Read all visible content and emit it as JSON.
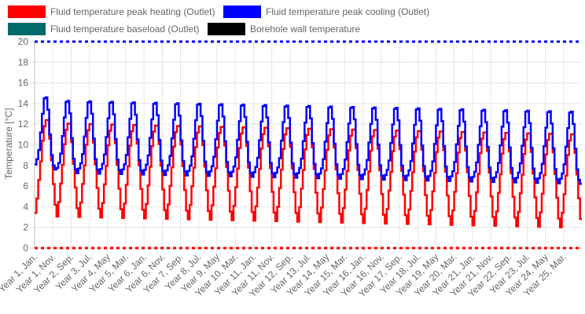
{
  "chart_data": {
    "type": "line",
    "ylabel": "Temperature [°C]",
    "ylim": [
      0,
      20
    ],
    "y_ticks": [
      0,
      2,
      4,
      6,
      8,
      10,
      12,
      14,
      16,
      18,
      20
    ],
    "grid": true,
    "legend_position": "top",
    "x_tick_labels": [
      "Year 1, Jan.",
      "Year 1, Nov.",
      "Year 2, Sep.",
      "Year 3, Jul.",
      "Year 4, May",
      "Year 5, Mar.",
      "Year 6, Jan.",
      "Year 6, Nov.",
      "Year 7, Sep.",
      "Year 8, Jul.",
      "Year 9, May",
      "Year 10, Mar.",
      "Year 11, Jan.",
      "Year 11, Nov.",
      "Year 12, Sep.",
      "Year 13, Jul.",
      "Year 14, May",
      "Year 15, Mar.",
      "Year 16, Jan.",
      "Year 16, Nov.",
      "Year 17, Sep.",
      "Year 18, Jul.",
      "Year 19, May",
      "Year 20, Mar.",
      "Year 21, Jan.",
      "Year 21, Nov.",
      "Year 22, Sep.",
      "Year 23, Jul.",
      "Year 24, May",
      "Year 25, Mar."
    ],
    "months": 300,
    "series": [
      {
        "name": "Fluid temperature peak heating (Outlet)",
        "color": "#ff0000",
        "monthly_profile": [
          3.4,
          4.8,
          6.6,
          8.4,
          10.4,
          11.8,
          12.4,
          12.4,
          10.6,
          8.5,
          6.2,
          4.2
        ],
        "first_year_profile": [
          3.4,
          4.8,
          6.6,
          8.4,
          10.4,
          11.8,
          12.4,
          12.4,
          10.6,
          8.5,
          6.2,
          4.2
        ],
        "annual_drift": -0.045
      },
      {
        "name": "Fluid temperature peak cooling (Outlet)",
        "color": "#0000ff",
        "monthly_profile": [
          8.1,
          8.6,
          9.5,
          11.2,
          13.0,
          14.5,
          14.6,
          13.4,
          11.0,
          9.0,
          8.0,
          7.6
        ],
        "first_year_profile": [
          8.1,
          8.6,
          9.5,
          11.2,
          13.0,
          14.5,
          14.6,
          13.4,
          11.0,
          9.0,
          8.0,
          7.6
        ],
        "annual_drift": -0.045
      },
      {
        "name": "Fluid temperature baseload (Outlet)",
        "color": "#006a6a",
        "monthly_profile": [],
        "annual_drift": 0
      },
      {
        "name": "Borehole wall temperature",
        "color": "#000000",
        "monthly_profile": [],
        "annual_drift": 0
      }
    ],
    "limits": [
      {
        "value": 20,
        "color": "#0000ff"
      },
      {
        "value": 0,
        "color": "#ff0000"
      }
    ]
  }
}
